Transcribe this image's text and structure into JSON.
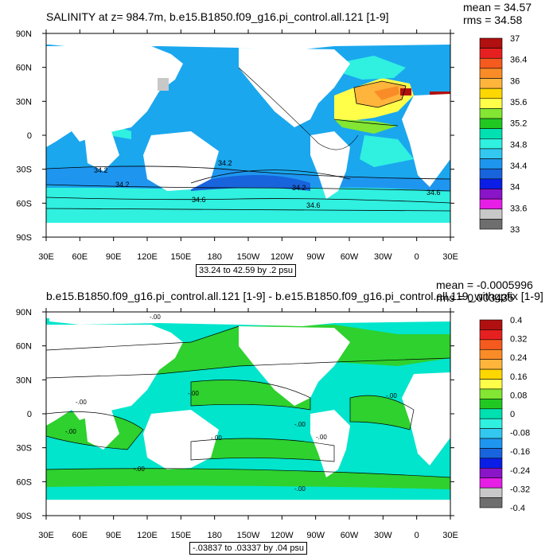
{
  "colors": {
    "ocean_top": "#1aa7ee",
    "land": "#ffffff",
    "ocean_bottom": "#00e5cc",
    "high_pos": "#2ed12e",
    "frame": "#000000"
  },
  "colorbar_colors": [
    "#b01010",
    "#e62020",
    "#f55a1e",
    "#fa8c28",
    "#ffb43c",
    "#ffd700",
    "#ffff4a",
    "#82e632",
    "#22c822",
    "#00e0b0",
    "#30f0e0",
    "#32c8f0",
    "#1e96f0",
    "#1864dc",
    "#0a1ee6",
    "#8a14c8",
    "#e61ee6",
    "#c8c8c8",
    "#6e6e6e"
  ],
  "chart_data": [
    {
      "type": "heatmap",
      "title": "SALINITY at z= 984.7m, b.e15.B1850.f09_g16.pi_control.all.121 [1-9]",
      "stats": {
        "mean": "mean = 34.57",
        "rms": "rms = 34.58"
      },
      "caption": "33.24 to 42.59 by .2 psu",
      "xticks": [
        "30E",
        "60E",
        "90E",
        "120E",
        "150E",
        "180",
        "150W",
        "120W",
        "90W",
        "60W",
        "30W",
        "0",
        "30E"
      ],
      "yticks": [
        "90N",
        "60N",
        "30N",
        "0",
        "30S",
        "60S",
        "90S"
      ],
      "colorbar_labels": [
        "37",
        "36.4",
        "36",
        "35.6",
        "35.2",
        "34.8",
        "34.4",
        "34",
        "33.6",
        "33"
      ],
      "contour_labels": [
        "34.2",
        "34.2",
        "34.2",
        "34.2",
        "34.6",
        "34.6",
        "34.6"
      ]
    },
    {
      "type": "heatmap",
      "title": "b.e15.B1850.f09_g16.pi_control.all.121 [1-9] - b.e15.B1850.f09_g16.pi_control.all.119_withgpfix [1-9]",
      "stats": {
        "mean": "mean = -0.0005996",
        "rms": "rms = 0.003435"
      },
      "caption": "-.03837 to .03337 by .04 psu",
      "xticks": [
        "30E",
        "60E",
        "90E",
        "120E",
        "150E",
        "180",
        "150W",
        "120W",
        "90W",
        "60W",
        "30W",
        "0",
        "30E"
      ],
      "yticks": [
        "90N",
        "60N",
        "30N",
        "0",
        "30S",
        "60S",
        "90S"
      ],
      "colorbar_labels": [
        "0.4",
        "0.32",
        "0.24",
        "0.16",
        "0.08",
        "0",
        "-0.08",
        "-0.16",
        "-0.24",
        "-0.32",
        "-0.4"
      ],
      "contour_labels": [
        "-.00",
        "-.00",
        "-.00",
        "-.00",
        "-.00",
        "-.00",
        "-.00",
        "-.00",
        "-.00",
        "-.00"
      ]
    }
  ]
}
